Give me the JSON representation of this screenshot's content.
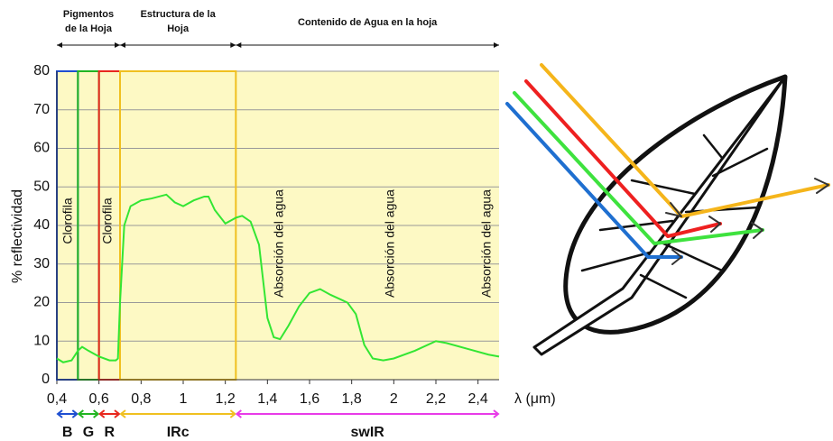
{
  "chart_data": {
    "type": "line",
    "y_label": "% reflectividad",
    "x_label": "λ (μm)",
    "xlim": [
      0.4,
      2.5
    ],
    "ylim": [
      0,
      80
    ],
    "xticks": [
      {
        "value": 0.4,
        "label": "0,4"
      },
      {
        "value": 0.6,
        "label": "0,6"
      },
      {
        "value": 0.8,
        "label": "0,8"
      },
      1,
      {
        "value": 1.2,
        "label": "1,2"
      },
      {
        "value": 1.4,
        "label": "1,4"
      },
      {
        "value": 1.6,
        "label": "1,6"
      },
      {
        "value": 1.8,
        "label": "1,8"
      },
      2,
      {
        "value": 2.2,
        "label": "2,2"
      },
      {
        "value": 2.4,
        "label": "2,4"
      }
    ],
    "yticks": [
      0,
      10,
      20,
      30,
      40,
      50,
      60,
      70,
      80
    ],
    "grid": true,
    "background": "#fdf9c4",
    "x": [
      0.4,
      0.43,
      0.47,
      0.5,
      0.52,
      0.55,
      0.6,
      0.65,
      0.68,
      0.69,
      0.7,
      0.72,
      0.75,
      0.8,
      0.85,
      0.92,
      0.96,
      1.0,
      1.05,
      1.1,
      1.12,
      1.15,
      1.2,
      1.25,
      1.28,
      1.32,
      1.36,
      1.4,
      1.43,
      1.46,
      1.5,
      1.55,
      1.6,
      1.65,
      1.7,
      1.78,
      1.82,
      1.86,
      1.9,
      1.95,
      2.0,
      2.1,
      2.2,
      2.25,
      2.35,
      2.45,
      2.5
    ],
    "series": [
      {
        "color": "#33e633",
        "values": [
          5.5,
          4.5,
          5,
          7.5,
          8.5,
          7.5,
          6,
          5,
          5,
          5.5,
          20,
          40,
          45,
          46.5,
          47,
          48,
          46,
          45,
          46.5,
          47.5,
          47.5,
          44,
          40.5,
          42,
          42.5,
          41,
          35,
          16,
          11,
          10.5,
          14,
          19,
          22.5,
          23.5,
          22,
          20,
          17,
          9,
          5.5,
          5,
          5.5,
          7.5,
          10,
          9.5,
          8,
          6.5,
          6
        ]
      }
    ],
    "bands": [
      {
        "name": "B",
        "range": [
          0.4,
          0.5
        ],
        "color": "#1f4fd1",
        "outlined": true
      },
      {
        "name": "G",
        "range": [
          0.5,
          0.6
        ],
        "color": "#22b522",
        "outlined": true
      },
      {
        "name": "R",
        "range": [
          0.6,
          0.7
        ],
        "color": "#e8281e",
        "outlined": true
      },
      {
        "name": "IRc",
        "range": [
          0.7,
          1.25
        ],
        "color": "#f0c020",
        "outlined": true
      },
      {
        "name": "swIR",
        "range": [
          1.25,
          2.5
        ],
        "color": "#e83ce8",
        "outlined": false
      }
    ],
    "regions": [
      {
        "lines": [
          "Pigmentos",
          "de la Hoja"
        ],
        "range": [
          0.4,
          0.7
        ]
      },
      {
        "lines": [
          "Estructura de la",
          "Hoja"
        ],
        "range": [
          0.7,
          1.25
        ]
      },
      {
        "lines": [
          "Contenido de Agua en la hoja"
        ],
        "range": [
          1.25,
          2.5
        ]
      }
    ],
    "annotations": [
      "Clorofila",
      "Clorofila",
      "Absorción del agua",
      "Absorción del agua",
      "Absorción del agua"
    ]
  }
}
